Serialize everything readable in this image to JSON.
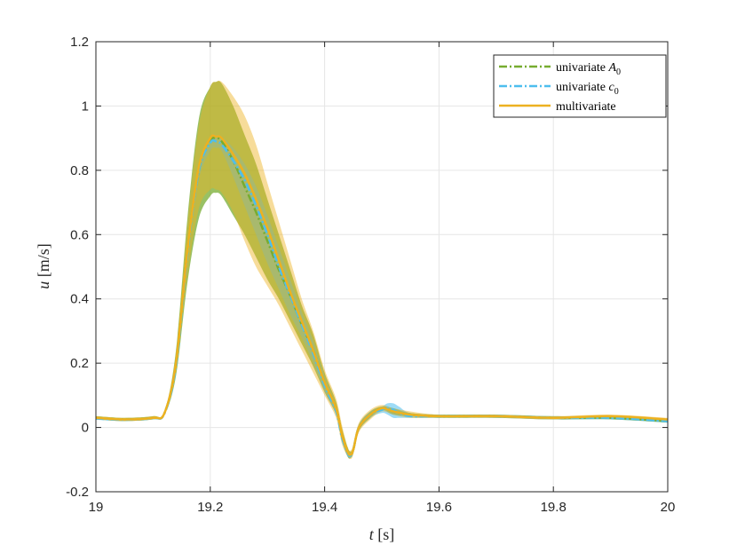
{
  "chart_data": {
    "type": "line",
    "xlabel": "t [s]",
    "xlabel_var": "t",
    "xlabel_unit": "[s]",
    "ylabel": "u [m/s]",
    "ylabel_var": "u",
    "ylabel_unit": "[m/s]",
    "xlim": [
      19,
      20
    ],
    "ylim": [
      -0.2,
      1.2
    ],
    "xticks": [
      19,
      19.2,
      19.4,
      19.6,
      19.8,
      20
    ],
    "xtick_labels": [
      "19",
      "19.2",
      "19.4",
      "19.6",
      "19.8",
      "20"
    ],
    "yticks": [
      -0.2,
      0,
      0.2,
      0.4,
      0.6,
      0.8,
      1,
      1.2
    ],
    "ytick_labels": [
      "-0.2",
      "0",
      "0.2",
      "0.4",
      "0.6",
      "0.8",
      "1",
      "1.2"
    ],
    "grid": true,
    "legend_position": "top-right",
    "series": [
      {
        "name": "univariate A0",
        "legend_text": "univariate ",
        "legend_var": "A",
        "legend_sub": "0",
        "color": "#77AC30",
        "band_color": "#77AC30",
        "band_opacity": 0.75,
        "dashed": true,
        "x": [
          19,
          19.05,
          19.1,
          19.12,
          19.14,
          19.16,
          19.18,
          19.2,
          19.21,
          19.22,
          19.24,
          19.26,
          19.28,
          19.3,
          19.32,
          19.34,
          19.36,
          19.38,
          19.4,
          19.42,
          19.43,
          19.44,
          19.445,
          19.45,
          19.46,
          19.48,
          19.5,
          19.52,
          19.55,
          19.6,
          19.7,
          19.8,
          19.9,
          20
        ],
        "mean": [
          0.03,
          0.025,
          0.03,
          0.045,
          0.2,
          0.55,
          0.8,
          0.89,
          0.9,
          0.89,
          0.83,
          0.75,
          0.67,
          0.58,
          0.49,
          0.41,
          0.32,
          0.24,
          0.14,
          0.06,
          -0.02,
          -0.075,
          -0.085,
          -0.07,
          0.0,
          0.04,
          0.06,
          0.05,
          0.04,
          0.035,
          0.035,
          0.03,
          0.03,
          0.02
        ],
        "lower": [
          0.025,
          0.02,
          0.025,
          0.04,
          0.16,
          0.45,
          0.65,
          0.72,
          0.73,
          0.72,
          0.66,
          0.6,
          0.53,
          0.46,
          0.4,
          0.33,
          0.26,
          0.19,
          0.11,
          0.04,
          -0.04,
          -0.09,
          -0.095,
          -0.08,
          -0.01,
          0.03,
          0.055,
          0.04,
          0.035,
          0.03,
          0.03,
          0.025,
          0.025,
          0.015
        ],
        "upper": [
          0.035,
          0.03,
          0.035,
          0.05,
          0.24,
          0.65,
          0.96,
          1.06,
          1.075,
          1.07,
          1.0,
          0.91,
          0.82,
          0.71,
          0.6,
          0.49,
          0.38,
          0.29,
          0.17,
          0.08,
          0.0,
          -0.06,
          -0.075,
          -0.06,
          0.01,
          0.05,
          0.065,
          0.06,
          0.045,
          0.04,
          0.04,
          0.035,
          0.035,
          0.025
        ]
      },
      {
        "name": "univariate c0",
        "legend_text": "univariate ",
        "legend_var": "c",
        "legend_sub": "0",
        "color": "#4DBEEE",
        "band_color": "#4DBEEE",
        "band_opacity": 0.55,
        "dashed": true,
        "x": [
          19,
          19.05,
          19.1,
          19.12,
          19.14,
          19.16,
          19.18,
          19.2,
          19.21,
          19.22,
          19.24,
          19.26,
          19.28,
          19.3,
          19.32,
          19.34,
          19.36,
          19.38,
          19.4,
          19.42,
          19.43,
          19.44,
          19.445,
          19.45,
          19.46,
          19.48,
          19.5,
          19.51,
          19.52,
          19.53,
          19.55,
          19.6,
          19.7,
          19.8,
          19.9,
          20
        ],
        "mean": [
          0.028,
          0.024,
          0.029,
          0.044,
          0.19,
          0.54,
          0.8,
          0.885,
          0.89,
          0.88,
          0.83,
          0.77,
          0.69,
          0.6,
          0.5,
          0.41,
          0.32,
          0.23,
          0.13,
          0.05,
          -0.03,
          -0.08,
          -0.088,
          -0.07,
          0.0,
          0.04,
          0.055,
          0.06,
          0.055,
          0.045,
          0.035,
          0.035,
          0.035,
          0.03,
          0.03,
          0.02
        ],
        "lower": [
          0.024,
          0.02,
          0.025,
          0.04,
          0.18,
          0.52,
          0.77,
          0.86,
          0.87,
          0.86,
          0.78,
          0.69,
          0.6,
          0.51,
          0.43,
          0.35,
          0.28,
          0.2,
          0.11,
          0.04,
          -0.04,
          -0.09,
          -0.095,
          -0.08,
          -0.01,
          0.03,
          0.045,
          0.04,
          0.03,
          0.03,
          0.03,
          0.03,
          0.03,
          0.025,
          0.025,
          0.015
        ],
        "upper": [
          0.032,
          0.028,
          0.033,
          0.048,
          0.2,
          0.56,
          0.82,
          0.905,
          0.91,
          0.905,
          0.87,
          0.82,
          0.75,
          0.66,
          0.56,
          0.46,
          0.36,
          0.27,
          0.16,
          0.07,
          -0.01,
          -0.07,
          -0.08,
          -0.06,
          0.01,
          0.05,
          0.065,
          0.075,
          0.075,
          0.065,
          0.045,
          0.04,
          0.04,
          0.035,
          0.035,
          0.025
        ]
      },
      {
        "name": "multivariate",
        "legend_text": "multivariate",
        "legend_var": "",
        "legend_sub": "",
        "color": "#EDB120",
        "band_color": "#EDB120",
        "band_opacity": 0.45,
        "dashed": false,
        "x": [
          19,
          19.05,
          19.1,
          19.12,
          19.14,
          19.16,
          19.18,
          19.2,
          19.21,
          19.22,
          19.24,
          19.26,
          19.28,
          19.3,
          19.32,
          19.34,
          19.36,
          19.38,
          19.4,
          19.42,
          19.43,
          19.44,
          19.445,
          19.45,
          19.46,
          19.48,
          19.5,
          19.52,
          19.55,
          19.6,
          19.7,
          19.8,
          19.9,
          20
        ],
        "mean": [
          0.03,
          0.025,
          0.03,
          0.045,
          0.2,
          0.55,
          0.81,
          0.9,
          0.905,
          0.9,
          0.85,
          0.79,
          0.71,
          0.62,
          0.52,
          0.42,
          0.33,
          0.24,
          0.14,
          0.06,
          -0.02,
          -0.075,
          -0.085,
          -0.07,
          0.0,
          0.04,
          0.06,
          0.05,
          0.04,
          0.035,
          0.035,
          0.03,
          0.035,
          0.025
        ],
        "lower": [
          0.025,
          0.02,
          0.025,
          0.04,
          0.17,
          0.47,
          0.68,
          0.74,
          0.74,
          0.73,
          0.67,
          0.58,
          0.5,
          0.44,
          0.38,
          0.31,
          0.24,
          0.17,
          0.1,
          0.03,
          -0.05,
          -0.09,
          -0.098,
          -0.085,
          -0.015,
          0.025,
          0.05,
          0.04,
          0.03,
          0.03,
          0.03,
          0.025,
          0.03,
          0.02
        ],
        "upper": [
          0.035,
          0.03,
          0.035,
          0.05,
          0.23,
          0.63,
          0.94,
          1.06,
          1.075,
          1.075,
          1.03,
          0.97,
          0.88,
          0.76,
          0.64,
          0.52,
          0.4,
          0.3,
          0.18,
          0.09,
          0.01,
          -0.06,
          -0.072,
          -0.055,
          0.015,
          0.055,
          0.07,
          0.06,
          0.05,
          0.04,
          0.04,
          0.035,
          0.04,
          0.03
        ]
      }
    ]
  }
}
